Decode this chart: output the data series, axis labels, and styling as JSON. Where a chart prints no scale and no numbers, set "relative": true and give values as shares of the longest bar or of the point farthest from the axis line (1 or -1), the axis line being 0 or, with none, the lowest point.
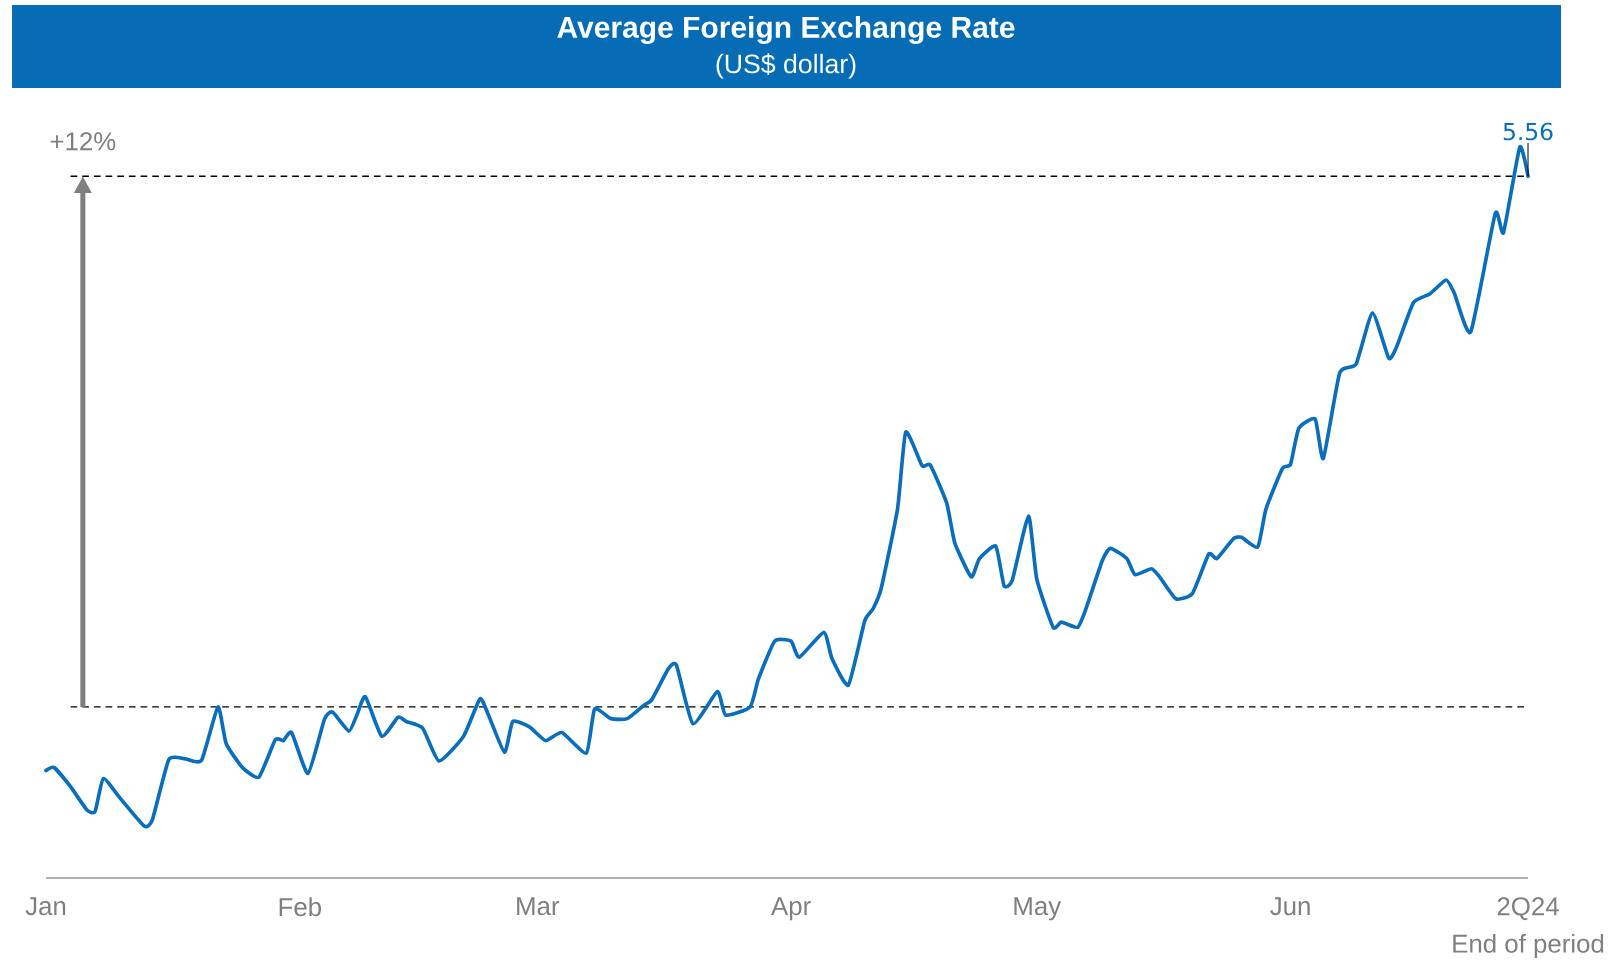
{
  "chart_data": {
    "type": "line",
    "title": "Average Foreign Exchange Rate",
    "subtitle": "(US$ dollar)",
    "xlabel": "End of period",
    "color": "#0a6ebd",
    "relative": true,
    "x": [
      "2024-01-01",
      "2024-01-02",
      "2024-01-04",
      "2024-01-06",
      "2024-01-07",
      "2024-01-08",
      "2024-01-10",
      "2024-01-13",
      "2024-01-14",
      "2024-01-16",
      "2024-01-18",
      "2024-01-20",
      "2024-01-22",
      "2024-01-23",
      "2024-01-25",
      "2024-01-27",
      "2024-01-29",
      "2024-01-30",
      "2024-01-31",
      "2024-02-02",
      "2024-02-04",
      "2024-02-05",
      "2024-02-07",
      "2024-02-08",
      "2024-02-09",
      "2024-02-11",
      "2024-02-13",
      "2024-02-14",
      "2024-02-16",
      "2024-02-18",
      "2024-02-21",
      "2024-02-23",
      "2024-02-24",
      "2024-02-26",
      "2024-02-27",
      "2024-02-29",
      "2024-03-02",
      "2024-03-04",
      "2024-03-07",
      "2024-03-08",
      "2024-03-10",
      "2024-03-12",
      "2024-03-14",
      "2024-03-15",
      "2024-03-17",
      "2024-03-18",
      "2024-03-20",
      "2024-03-23",
      "2024-03-24",
      "2024-03-27",
      "2024-03-28",
      "2024-03-30",
      "2024-04-01",
      "2024-04-02",
      "2024-04-05",
      "2024-04-06",
      "2024-04-08",
      "2024-04-10",
      "2024-04-11",
      "2024-04-12",
      "2024-04-14",
      "2024-04-15",
      "2024-04-17",
      "2024-04-18",
      "2024-04-20",
      "2024-04-21",
      "2024-04-23",
      "2024-04-24",
      "2024-04-26",
      "2024-04-27",
      "2024-04-28",
      "2024-04-30",
      "2024-05-01",
      "2024-05-03",
      "2024-05-04",
      "2024-05-06",
      "2024-05-07",
      "2024-05-09",
      "2024-05-10",
      "2024-05-12",
      "2024-05-13",
      "2024-05-15",
      "2024-05-16",
      "2024-05-18",
      "2024-05-20",
      "2024-05-22",
      "2024-05-23",
      "2024-05-25",
      "2024-05-26",
      "2024-05-28",
      "2024-05-29",
      "2024-05-31",
      "2024-06-01",
      "2024-06-02",
      "2024-06-04",
      "2024-06-05",
      "2024-06-07",
      "2024-06-09",
      "2024-06-11",
      "2024-06-13",
      "2024-06-14",
      "2024-06-16",
      "2024-06-18",
      "2024-06-20",
      "2024-06-21",
      "2024-06-23",
      "2024-06-26",
      "2024-06-27",
      "2024-06-29",
      "2024-06-30"
    ],
    "values": [
      0.147,
      0.151,
      0.125,
      0.093,
      0.091,
      0.136,
      0.11,
      0.071,
      0.08,
      0.162,
      0.163,
      0.161,
      0.234,
      0.184,
      0.151,
      0.138,
      0.189,
      0.188,
      0.199,
      0.143,
      0.217,
      0.227,
      0.201,
      0.224,
      0.248,
      0.194,
      0.22,
      0.214,
      0.205,
      0.16,
      0.194,
      0.245,
      0.224,
      0.172,
      0.214,
      0.207,
      0.188,
      0.199,
      0.171,
      0.231,
      0.218,
      0.218,
      0.236,
      0.244,
      0.286,
      0.291,
      0.211,
      0.255,
      0.223,
      0.234,
      0.272,
      0.324,
      0.324,
      0.302,
      0.336,
      0.3,
      0.264,
      0.352,
      0.368,
      0.396,
      0.505,
      0.61,
      0.564,
      0.565,
      0.513,
      0.458,
      0.412,
      0.437,
      0.454,
      0.4,
      0.407,
      0.495,
      0.409,
      0.343,
      0.35,
      0.343,
      0.368,
      0.434,
      0.451,
      0.437,
      0.415,
      0.423,
      0.412,
      0.382,
      0.389,
      0.443,
      0.437,
      0.464,
      0.466,
      0.453,
      0.505,
      0.56,
      0.566,
      0.615,
      0.628,
      0.574,
      0.691,
      0.703,
      0.773,
      0.711,
      0.728,
      0.787,
      0.799,
      0.818,
      0.8,
      0.747,
      0.909,
      0.883,
      1,
      0.96
    ],
    "xlim": [
      "2024-01-01",
      "2024-06-30"
    ],
    "xticks": [
      {
        "value": "2024-01-01",
        "label": "Jan"
      },
      {
        "value": "2024-02-01",
        "label": "Feb"
      },
      {
        "value": "2024-03-01",
        "label": "Mar"
      },
      {
        "value": "2024-04-01",
        "label": "Apr"
      },
      {
        "value": "2024-05-01",
        "label": "May"
      },
      {
        "value": "2024-06-01",
        "label": "Jun"
      },
      {
        "value": "2024-06-30",
        "label": "2Q24"
      }
    ],
    "tick_labels": "x",
    "ref_lines": [
      {
        "axis": "y",
        "value": 0.234,
        "color": "#000000",
        "line_style": "dashed"
      },
      {
        "axis": "y",
        "value": 0.96,
        "color": "#000000",
        "line_style": "dashed"
      }
    ],
    "annotations": [
      "+12%",
      {
        "text": "5.56",
        "x": "2024-06-30",
        "y": 0.96
      }
    ]
  }
}
